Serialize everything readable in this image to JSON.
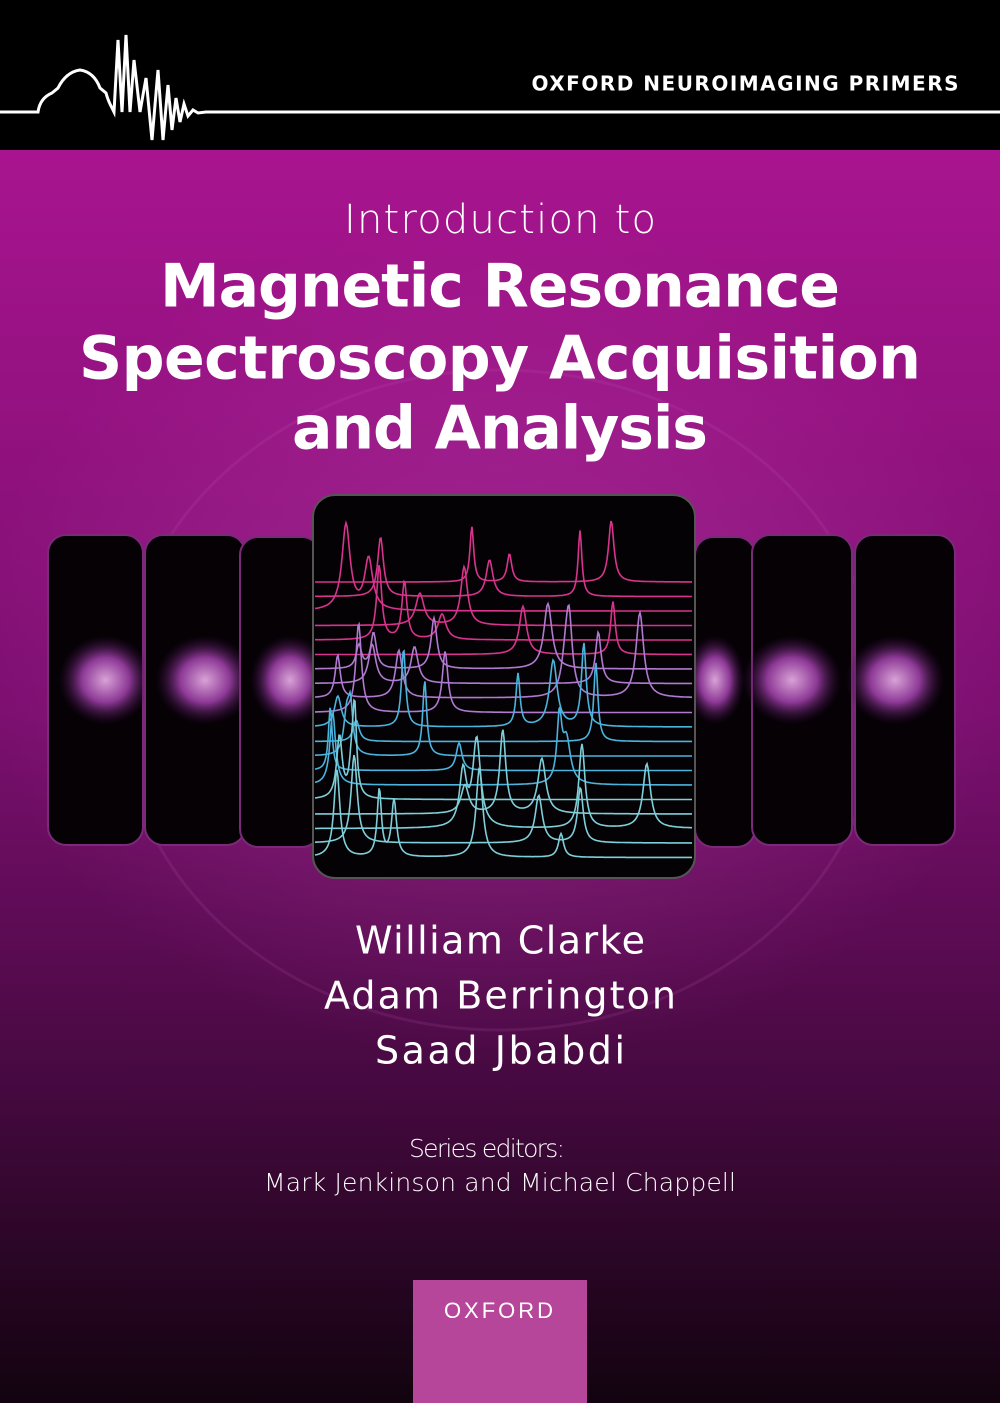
{
  "header": {
    "series": "OXFORD NEUROIMAGING PRIMERS"
  },
  "title": {
    "intro": "Introduction to",
    "lines": [
      "Magnetic Resonance",
      "Spectroscopy Acquisition",
      "and Analysis"
    ]
  },
  "authors": [
    "William Clarke",
    "Adam Berrington",
    "Saad Jbabdi"
  ],
  "editors": {
    "label": "Series editors:",
    "names": "Mark Jenkinson and Michael Chappell"
  },
  "publisher": "OXFORD"
}
